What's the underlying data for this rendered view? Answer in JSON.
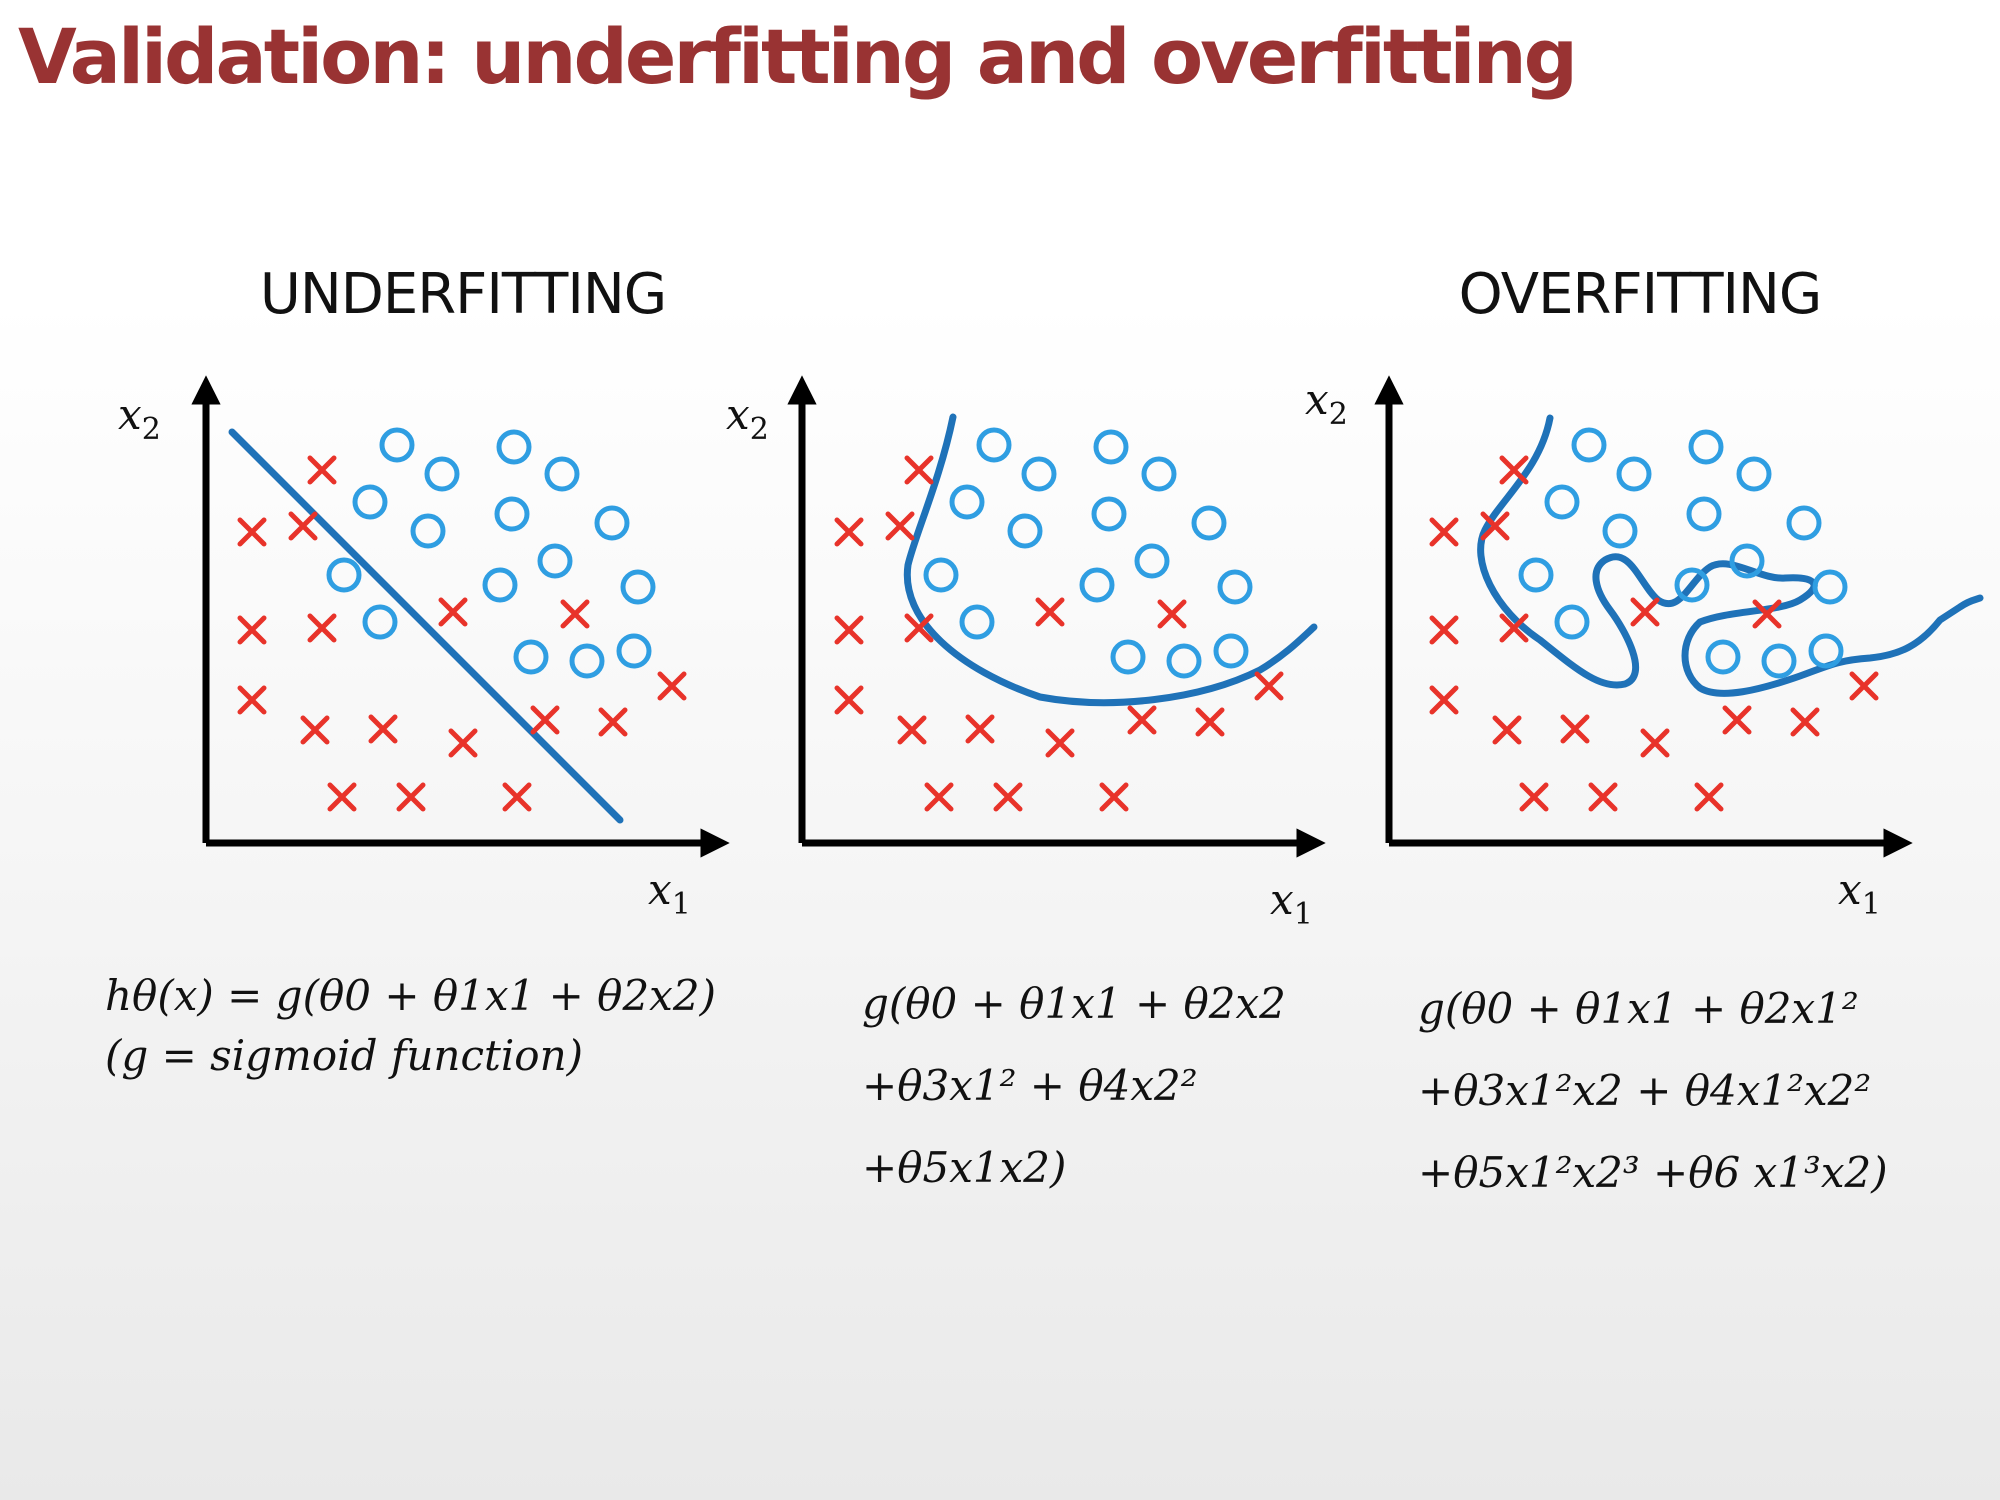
{
  "title": "Validation: underfitting and overfitting",
  "panels": {
    "underfitting": {
      "label": "UNDERFITTING"
    },
    "overfitting": {
      "label": "OVERFITTING"
    }
  },
  "axes": {
    "x_label": "x",
    "x_sub": "1",
    "y_label": "x",
    "y_sub": "2"
  },
  "formulas": {
    "underfitting": [
      "hθ(x) = g(θ0 + θ1x1 + θ2x2)",
      "(g = sigmoid function)"
    ],
    "middle": [
      "g(θ0 + θ1x1 + θ2x2",
      "+θ3x1² + θ4x2²",
      "+θ5x1x2)"
    ],
    "overfitting": [
      "g(θ0 + θ1x1 + θ2x1²",
      "+θ3x1²x2 + θ4x1²x2²",
      "+θ5x1²x2³ +θ6 x1³x2)"
    ]
  },
  "colors": {
    "title": "#993333",
    "circle": "#2f9ee2",
    "cross": "#e8332a",
    "boundary": "#1f72b8",
    "axis": "#000000"
  }
}
